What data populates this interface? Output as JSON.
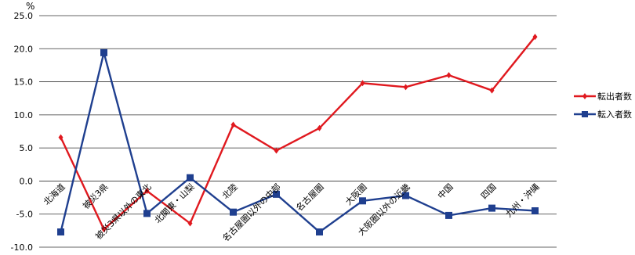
{
  "chart_data": {
    "type": "line",
    "unit": "%",
    "ylim": [
      -10,
      25
    ],
    "yticks": [
      "25.0",
      "20.0",
      "15.0",
      "10.0",
      "5.0",
      "0.0",
      "-5.0",
      "-10.0"
    ],
    "grid": true,
    "legend_position": "right",
    "categories": [
      "北海道",
      "被災3県",
      "被災3県以外の東北",
      "北関東・山梨",
      "北陸",
      "名古屋圏以外の中部",
      "名古屋圏",
      "大阪圏",
      "大阪圏以外の近畿",
      "中国",
      "四国",
      "九州・沖縄"
    ],
    "series": [
      {
        "name": "転出者数",
        "color": "#e0191f",
        "marker": "diamond",
        "values": [
          6.6,
          -7.3,
          -1.5,
          -6.4,
          8.5,
          4.6,
          8.0,
          14.8,
          14.2,
          16.0,
          13.7,
          21.8
        ]
      },
      {
        "name": "転入者数",
        "color": "#1f3f8f",
        "marker": "square",
        "values": [
          -7.7,
          19.4,
          -4.9,
          0.5,
          -4.7,
          -2.0,
          -7.7,
          -3.0,
          -2.2,
          -5.2,
          -4.1,
          -4.5
        ]
      }
    ]
  }
}
